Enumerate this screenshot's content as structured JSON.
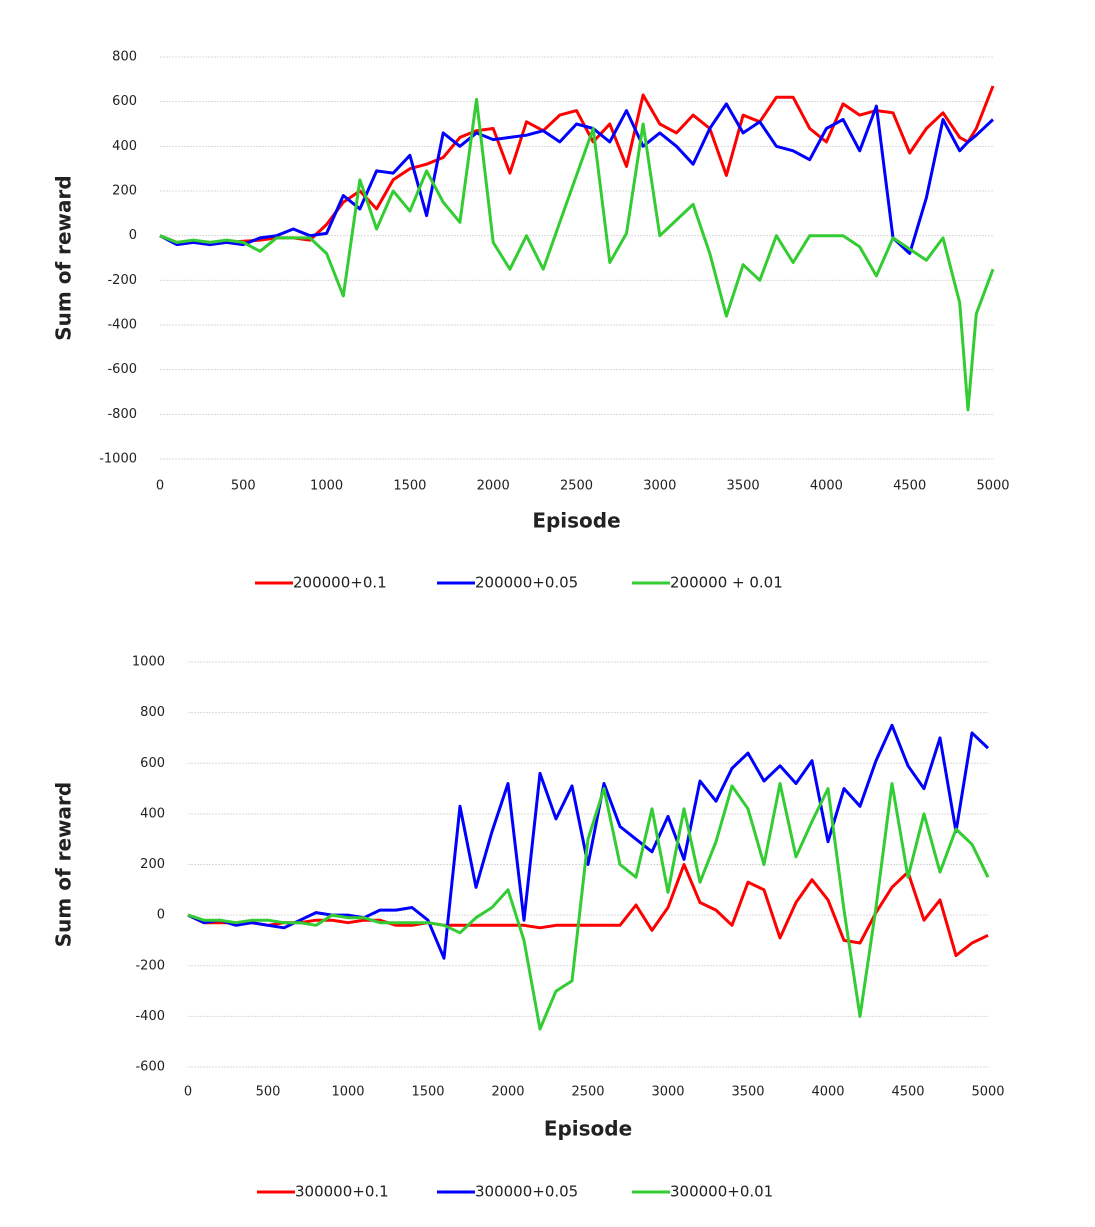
{
  "chart_data": [
    {
      "type": "line",
      "x_label": "Episode",
      "y_label": "Sum of reward",
      "x": [
        0,
        100,
        200,
        300,
        400,
        500,
        600,
        700,
        800,
        900,
        1000,
        1100,
        1200,
        1300,
        1400,
        1500,
        1600,
        1700,
        1800,
        1900,
        2000,
        2100,
        2200,
        2300,
        2400,
        2500,
        2600,
        2700,
        2800,
        2900,
        3000,
        3100,
        3200,
        3300,
        3400,
        3500,
        3600,
        3700,
        3800,
        3900,
        4000,
        4100,
        4200,
        4300,
        4400,
        4500,
        4600,
        4700,
        4800,
        4850,
        4900,
        5000
      ],
      "xlim": [
        0,
        5000
      ],
      "xticks": [
        0,
        500,
        1000,
        1500,
        2000,
        2500,
        3000,
        3500,
        4000,
        4500,
        5000
      ],
      "ylim": [
        -1000,
        800
      ],
      "yticks": [
        800,
        600,
        400,
        200,
        0,
        -200,
        -400,
        -600,
        -800,
        -1000
      ],
      "grid": true,
      "series": [
        {
          "name": "200000+0.1",
          "color": "#ff0000",
          "values": [
            0,
            -30,
            -25,
            -30,
            -30,
            -25,
            -20,
            -10,
            -10,
            -20,
            50,
            150,
            200,
            120,
            250,
            300,
            320,
            350,
            440,
            470,
            480,
            280,
            510,
            470,
            540,
            560,
            420,
            500,
            310,
            630,
            500,
            460,
            540,
            480,
            270,
            540,
            510,
            620,
            620,
            480,
            420,
            590,
            540,
            560,
            550,
            370,
            480,
            550,
            440,
            420,
            480,
            670
          ]
        },
        {
          "name": "200000+0.05",
          "color": "#0000ff",
          "values": [
            0,
            -40,
            -30,
            -40,
            -30,
            -40,
            -10,
            0,
            30,
            0,
            10,
            180,
            120,
            290,
            280,
            360,
            90,
            460,
            400,
            460,
            430,
            440,
            450,
            470,
            420,
            500,
            480,
            420,
            560,
            400,
            460,
            400,
            320,
            480,
            590,
            460,
            510,
            400,
            380,
            340,
            480,
            520,
            380,
            580,
            -10,
            -80,
            170,
            520,
            380,
            420,
            450,
            520
          ]
        },
        {
          "name": "200000 + 0.01",
          "color": "#33cc33",
          "values": [
            0,
            -30,
            -20,
            -30,
            -20,
            -30,
            -70,
            -10,
            -10,
            -10,
            -80,
            -270,
            250,
            30,
            200,
            110,
            290,
            150,
            60,
            610,
            -30,
            -150,
            0,
            -150,
            60,
            270,
            480,
            -120,
            10,
            500,
            0,
            70,
            140,
            -80,
            -360,
            -130,
            -200,
            0,
            -120,
            0,
            0,
            0,
            -50,
            -180,
            -10,
            -60,
            -110,
            -10,
            -300,
            -780,
            -350,
            -150
          ]
        }
      ],
      "legend": "bottom"
    },
    {
      "type": "line",
      "x_label": "Episode",
      "y_label": "Sum of reward",
      "x": [
        0,
        100,
        200,
        300,
        400,
        500,
        600,
        700,
        800,
        900,
        1000,
        1100,
        1200,
        1300,
        1400,
        1500,
        1600,
        1700,
        1800,
        1900,
        2000,
        2100,
        2200,
        2300,
        2400,
        2500,
        2600,
        2700,
        2800,
        2900,
        3000,
        3100,
        3200,
        3300,
        3400,
        3500,
        3600,
        3700,
        3800,
        3900,
        4000,
        4100,
        4200,
        4300,
        4400,
        4500,
        4600,
        4700,
        4800,
        4900,
        5000
      ],
      "xlim": [
        0,
        5000
      ],
      "xticks": [
        0,
        500,
        1000,
        1500,
        2000,
        2500,
        3000,
        3500,
        4000,
        4500,
        5000
      ],
      "ylim": [
        -600,
        1000
      ],
      "yticks": [
        1000,
        800,
        600,
        400,
        200,
        0,
        -200,
        -400,
        -600
      ],
      "grid": true,
      "series": [
        {
          "name": "300000+0.1",
          "color": "#ff0000",
          "values": [
            0,
            -30,
            -30,
            -30,
            -30,
            -40,
            -30,
            -30,
            -20,
            -20,
            -30,
            -20,
            -20,
            -40,
            -40,
            -30,
            -40,
            -40,
            -40,
            -40,
            -40,
            -40,
            -50,
            -40,
            -40,
            -40,
            -40,
            -40,
            40,
            -60,
            30,
            200,
            50,
            20,
            -40,
            130,
            100,
            -90,
            50,
            140,
            60,
            -100,
            -110,
            10,
            110,
            170,
            -20,
            60,
            -160,
            -110,
            -80
          ]
        },
        {
          "name": "300000+0.05",
          "color": "#0000ff",
          "values": [
            0,
            -30,
            -20,
            -40,
            -30,
            -40,
            -50,
            -20,
            10,
            0,
            0,
            -10,
            20,
            20,
            30,
            -20,
            -170,
            430,
            110,
            330,
            520,
            -20,
            560,
            380,
            510,
            200,
            520,
            350,
            300,
            250,
            390,
            220,
            530,
            450,
            580,
            640,
            530,
            590,
            520,
            610,
            290,
            500,
            430,
            610,
            750,
            590,
            500,
            700,
            330,
            720,
            660
          ]
        },
        {
          "name": "300000+0.01",
          "color": "#33cc33",
          "values": [
            0,
            -20,
            -20,
            -30,
            -20,
            -20,
            -30,
            -30,
            -40,
            0,
            -10,
            -10,
            -30,
            -30,
            -30,
            -30,
            -40,
            -70,
            -10,
            30,
            100,
            -100,
            -450,
            -300,
            -260,
            300,
            500,
            200,
            150,
            420,
            90,
            420,
            130,
            290,
            510,
            420,
            200,
            520,
            230,
            370,
            500,
            20,
            -400,
            30,
            520,
            150,
            400,
            170,
            340,
            280,
            150
          ]
        }
      ],
      "legend": "bottom"
    }
  ]
}
